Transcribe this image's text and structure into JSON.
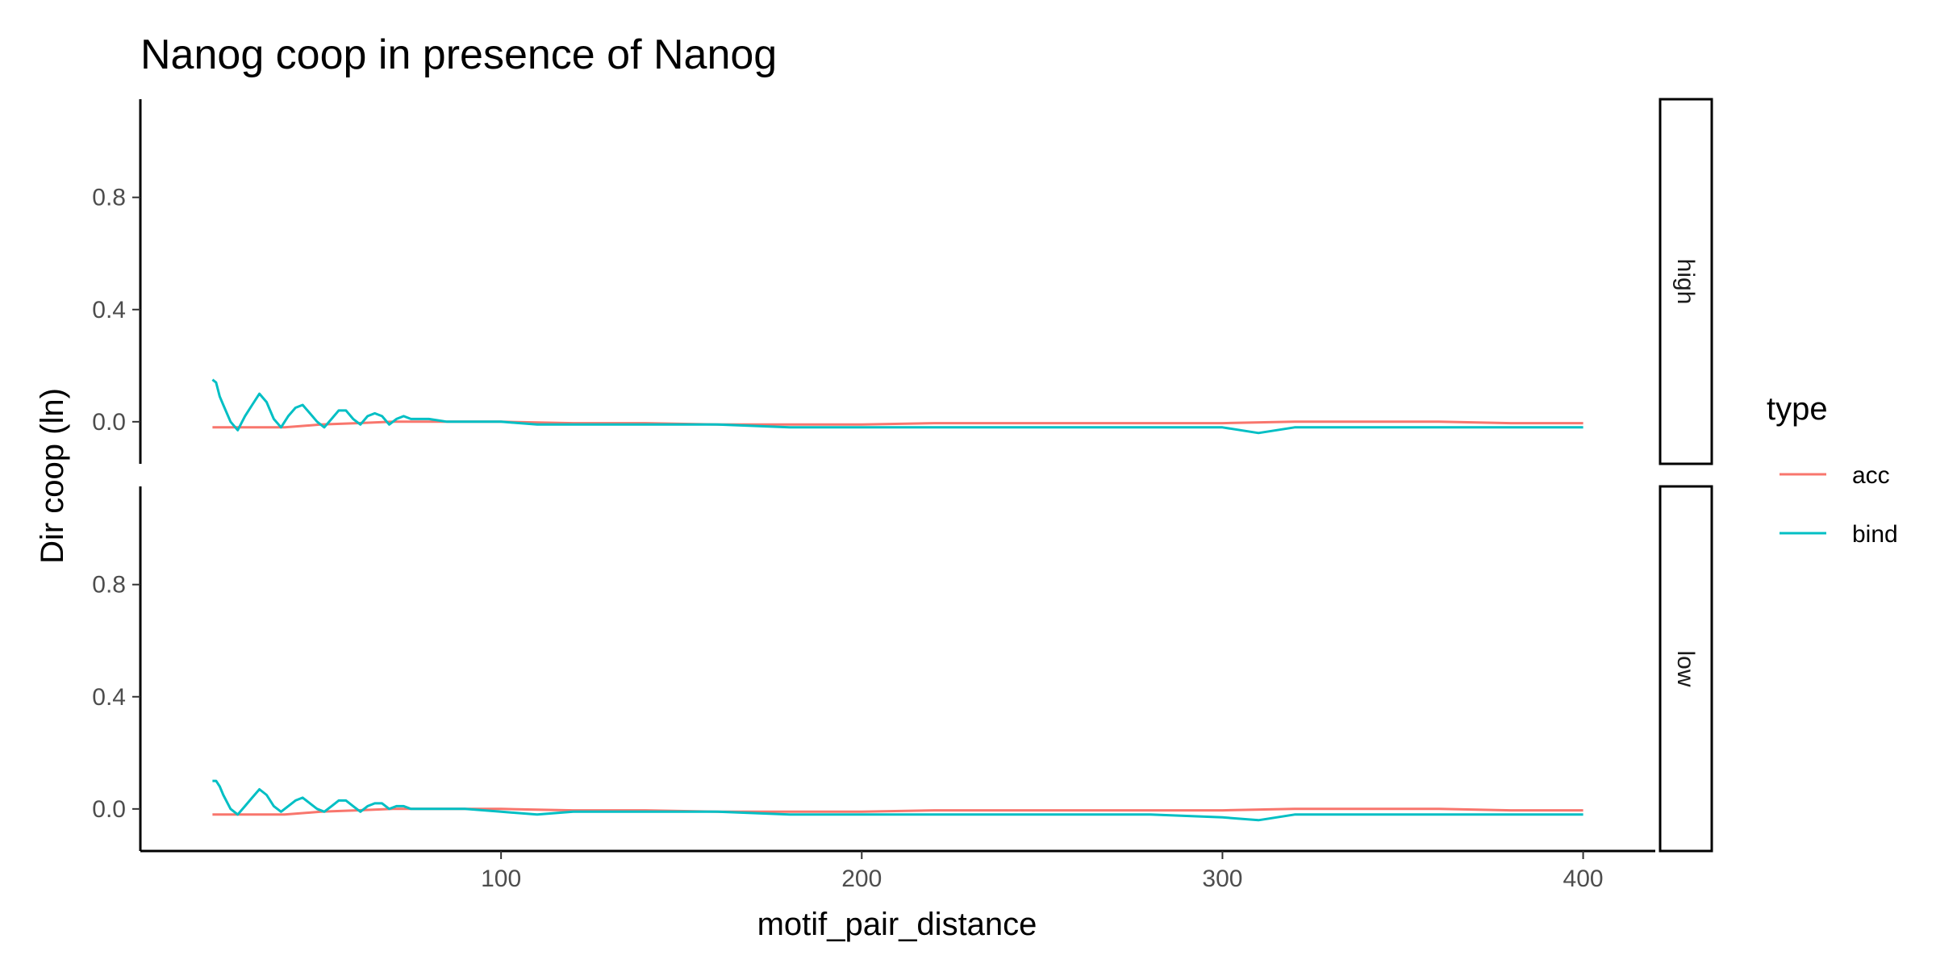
{
  "chart_data": {
    "type": "line",
    "title": "Nanog coop in presence of Nanog",
    "xlabel": "motif_pair_distance",
    "ylabel": "Dir coop (ln)",
    "xlim": [
      0,
      420
    ],
    "ylim": [
      -0.15,
      1.15
    ],
    "x_ticks": [
      100,
      200,
      300,
      400
    ],
    "y_ticks": [
      0.0,
      0.4,
      0.8
    ],
    "x_tick_labels": [
      "100",
      "200",
      "300",
      "400"
    ],
    "y_tick_labels": [
      "0.0",
      "0.4",
      "0.8"
    ],
    "grid": false,
    "legend": {
      "title": "type",
      "position": "right",
      "entries": [
        {
          "name": "acc",
          "color": "#F8766D"
        },
        {
          "name": "bind",
          "color": "#00BFC4"
        }
      ]
    },
    "facets": [
      {
        "label": "high",
        "series": [
          {
            "name": "acc",
            "color": "#F8766D",
            "x": [
              20,
              25,
              30,
              40,
              50,
              60,
              70,
              80,
              100,
              120,
              140,
              160,
              180,
              200,
              220,
              240,
              260,
              280,
              300,
              320,
              340,
              360,
              380,
              400
            ],
            "values": [
              -0.02,
              -0.02,
              -0.02,
              -0.02,
              -0.01,
              -0.005,
              0.0,
              0.0,
              0.0,
              -0.005,
              -0.005,
              -0.01,
              -0.01,
              -0.01,
              -0.005,
              -0.005,
              -0.005,
              -0.005,
              -0.005,
              0.0,
              0.0,
              0.0,
              -0.005,
              -0.005
            ]
          },
          {
            "name": "bind",
            "color": "#00BFC4",
            "x": [
              20,
              21,
              22,
              23,
              25,
              27,
              29,
              31,
              33,
              35,
              37,
              39,
              41,
              43,
              45,
              47,
              49,
              51,
              53,
              55,
              57,
              59,
              61,
              63,
              65,
              67,
              69,
              71,
              73,
              75,
              80,
              85,
              90,
              100,
              110,
              120,
              140,
              160,
              180,
              200,
              220,
              240,
              260,
              280,
              300,
              310,
              320,
              340,
              360,
              380,
              400
            ],
            "values": [
              0.15,
              0.14,
              0.09,
              0.06,
              0.0,
              -0.03,
              0.02,
              0.06,
              0.1,
              0.07,
              0.01,
              -0.02,
              0.02,
              0.05,
              0.06,
              0.03,
              0.0,
              -0.02,
              0.01,
              0.04,
              0.04,
              0.01,
              -0.01,
              0.02,
              0.03,
              0.02,
              -0.01,
              0.01,
              0.02,
              0.01,
              0.01,
              0.0,
              0.0,
              0.0,
              -0.01,
              -0.01,
              -0.01,
              -0.01,
              -0.02,
              -0.02,
              -0.02,
              -0.02,
              -0.02,
              -0.02,
              -0.02,
              -0.04,
              -0.02,
              -0.02,
              -0.02,
              -0.02,
              -0.02
            ]
          }
        ]
      },
      {
        "label": "low",
        "series": [
          {
            "name": "acc",
            "color": "#F8766D",
            "x": [
              20,
              25,
              30,
              40,
              50,
              60,
              70,
              80,
              100,
              120,
              140,
              160,
              180,
              200,
              220,
              240,
              260,
              280,
              300,
              320,
              340,
              360,
              380,
              400
            ],
            "values": [
              -0.02,
              -0.02,
              -0.02,
              -0.02,
              -0.01,
              -0.005,
              0.0,
              0.0,
              0.0,
              -0.005,
              -0.005,
              -0.01,
              -0.01,
              -0.01,
              -0.005,
              -0.005,
              -0.005,
              -0.005,
              -0.005,
              0.0,
              0.0,
              0.0,
              -0.005,
              -0.005
            ]
          },
          {
            "name": "bind",
            "color": "#00BFC4",
            "x": [
              20,
              21,
              22,
              23,
              25,
              27,
              29,
              31,
              33,
              35,
              37,
              39,
              41,
              43,
              45,
              47,
              49,
              51,
              53,
              55,
              57,
              59,
              61,
              63,
              65,
              67,
              69,
              71,
              73,
              75,
              80,
              85,
              90,
              100,
              110,
              120,
              140,
              160,
              180,
              200,
              220,
              240,
              260,
              280,
              300,
              310,
              320,
              340,
              360,
              380,
              400
            ],
            "values": [
              0.1,
              0.1,
              0.08,
              0.05,
              0.0,
              -0.02,
              0.01,
              0.04,
              0.07,
              0.05,
              0.01,
              -0.01,
              0.01,
              0.03,
              0.04,
              0.02,
              0.0,
              -0.01,
              0.01,
              0.03,
              0.03,
              0.01,
              -0.01,
              0.01,
              0.02,
              0.02,
              0.0,
              0.01,
              0.01,
              0.0,
              0.0,
              0.0,
              0.0,
              -0.01,
              -0.02,
              -0.01,
              -0.01,
              -0.01,
              -0.02,
              -0.02,
              -0.02,
              -0.02,
              -0.02,
              -0.02,
              -0.03,
              -0.04,
              -0.02,
              -0.02,
              -0.02,
              -0.02,
              -0.02
            ]
          }
        ]
      }
    ]
  }
}
